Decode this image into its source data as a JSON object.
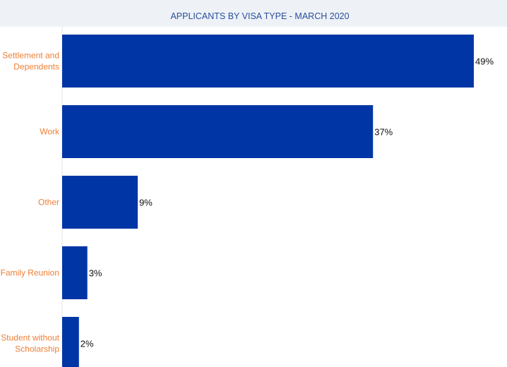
{
  "chart_data": {
    "type": "bar",
    "orientation": "horizontal",
    "title": "APPLICANTS BY VISA TYPE - MARCH 2020",
    "categories": [
      [
        "Settlement and",
        "Dependents"
      ],
      [
        "Work"
      ],
      [
        "Other"
      ],
      [
        "Family Reunion"
      ],
      [
        "Student without",
        "Scholarship"
      ]
    ],
    "values": [
      49,
      37,
      9,
      3,
      2
    ],
    "value_labels": [
      "49%",
      "37%",
      "9%",
      "3%",
      "2%"
    ],
    "xlim": [
      0,
      49
    ],
    "grid": false,
    "legend": "none",
    "colors": {
      "bar": "#0035a5",
      "category_label": "#f07f35",
      "title": "#2a4d9b",
      "title_band": "#eef2f7"
    }
  }
}
